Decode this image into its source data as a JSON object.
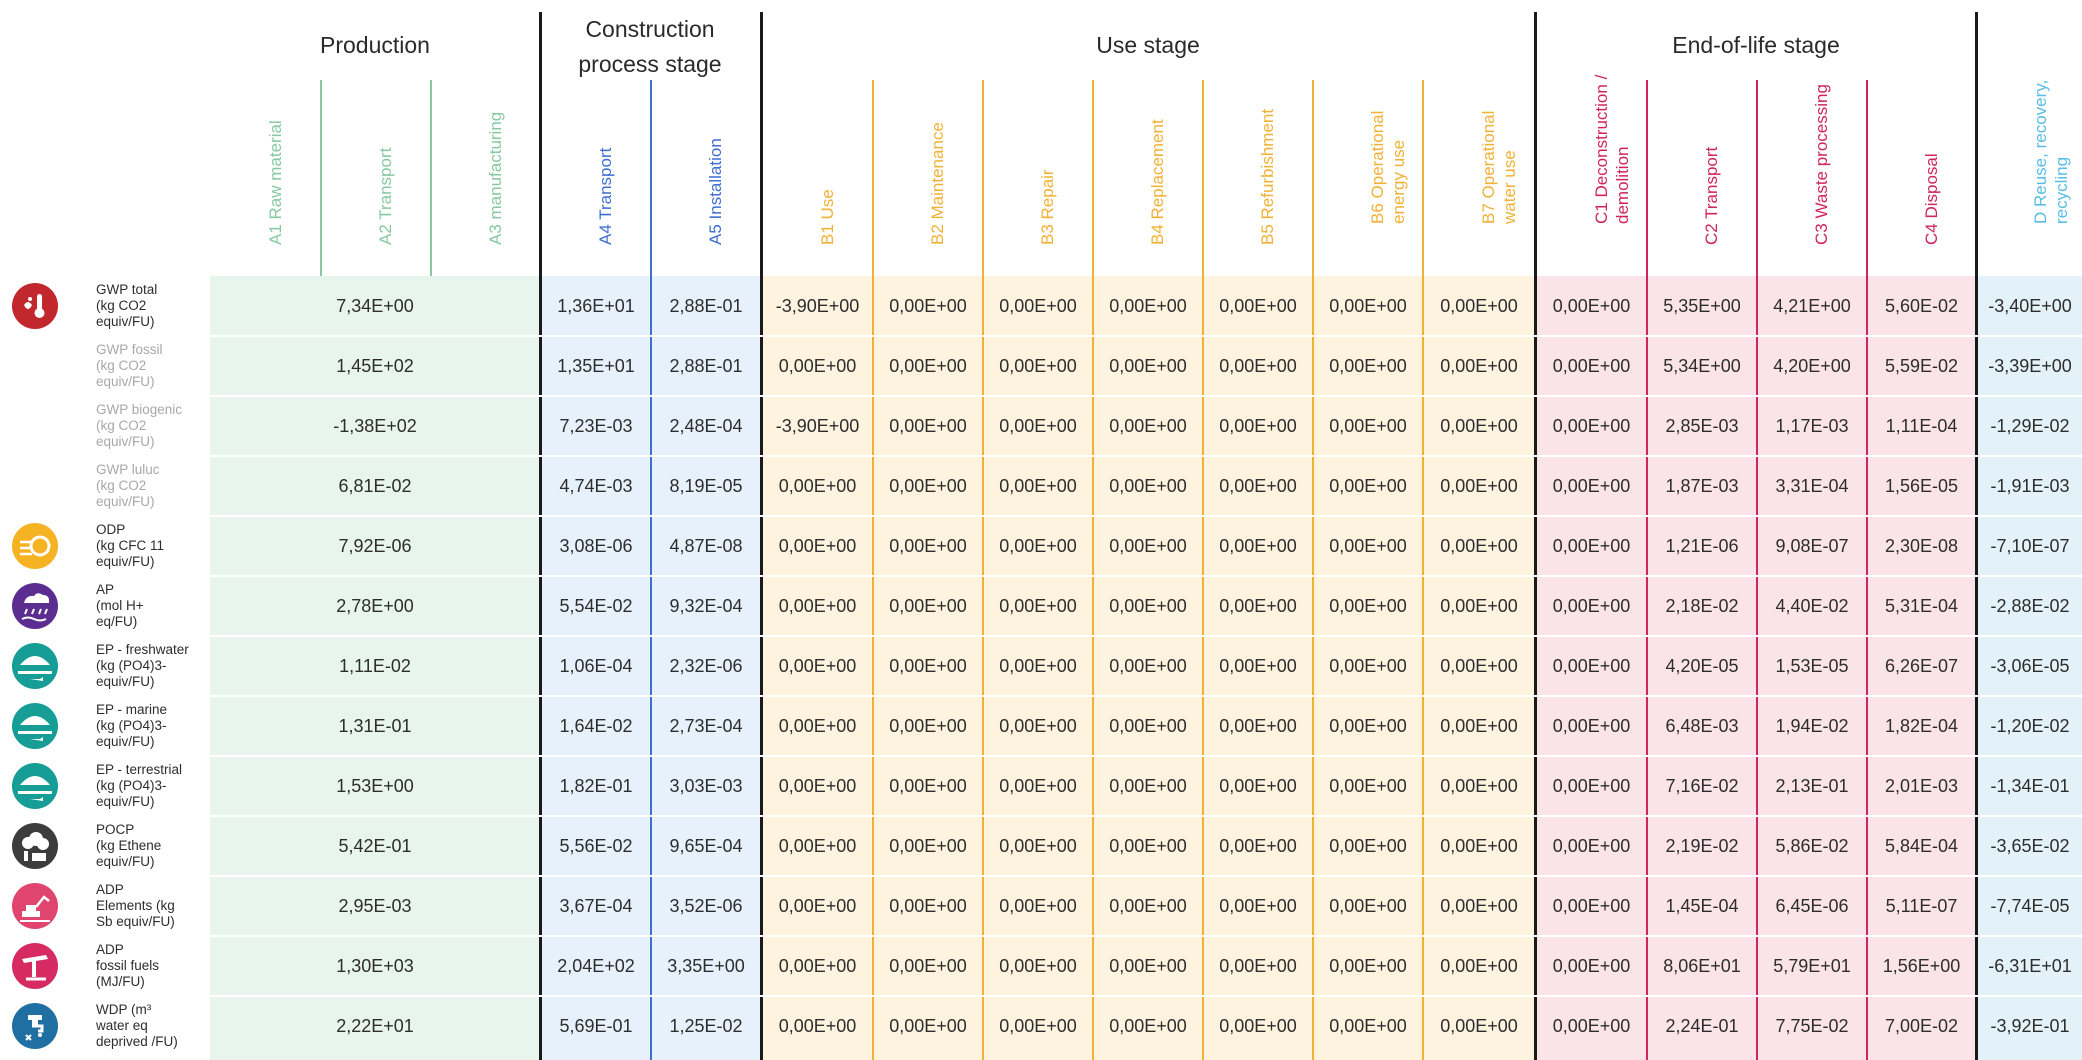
{
  "colors": {
    "production_text": "#86c9a0",
    "production_bg": "#e8f4ee",
    "construction_text": "#3f6fd1",
    "construction_bg": "#e6f1fb",
    "use_text": "#f2b134",
    "use_bg": "#fdf3df",
    "eol_text": "#d0245e",
    "eol_bg": "#fbe3ea",
    "d_text": "#58bde6",
    "d_bg": "#e3f2f9"
  },
  "stages": {
    "production": "Production",
    "construction_line1": "Construction",
    "construction_line2": "process stage",
    "use": "Use stage",
    "end_of_life": "End-of-life stage"
  },
  "columns": {
    "a1": "A1 Raw material",
    "a2": "A2 Transport",
    "a3": "A3 manufacturing",
    "a4": "A4 Transport",
    "a5": "A5 Installation",
    "b1": "B1 Use",
    "b2": "B2 Maintenance",
    "b3": "B3 Repair",
    "b4": "B4 Replacement",
    "b5": "B5 Refurbishment",
    "b6": "B6 Operational\nenergy use",
    "b7": "B7 Operational\nwater use",
    "c1": "C1 Deconstruction /\ndemolition",
    "c2": "C2 Transport",
    "c3": "C3 Waste processing",
    "c4": "C4 Disposal",
    "d": "D Reuse, recovery,\nrecycling"
  },
  "rows": [
    {
      "label": "GWP total\n(kg CO2\nequiv/FU)",
      "icon": "thermometer-icon",
      "icon_color": "#c1272d",
      "muted": false,
      "values": [
        "7,34E+00",
        "1,36E+01",
        "2,88E-01",
        "-3,90E+00",
        "0,00E+00",
        "0,00E+00",
        "0,00E+00",
        "0,00E+00",
        "0,00E+00",
        "0,00E+00",
        "0,00E+00",
        "5,35E+00",
        "4,21E+00",
        "5,60E-02",
        "-3,40E+00"
      ]
    },
    {
      "label": "GWP fossil\n(kg CO2\nequiv/FU)",
      "icon": "",
      "icon_color": "",
      "muted": true,
      "values": [
        "1,45E+02",
        "1,35E+01",
        "2,88E-01",
        "0,00E+00",
        "0,00E+00",
        "0,00E+00",
        "0,00E+00",
        "0,00E+00",
        "0,00E+00",
        "0,00E+00",
        "0,00E+00",
        "5,34E+00",
        "4,20E+00",
        "5,59E-02",
        "-3,39E+00"
      ]
    },
    {
      "label": "GWP biogenic\n(kg CO2\nequiv/FU)",
      "icon": "",
      "icon_color": "",
      "muted": true,
      "values": [
        "-1,38E+02",
        "7,23E-03",
        "2,48E-04",
        "-3,90E+00",
        "0,00E+00",
        "0,00E+00",
        "0,00E+00",
        "0,00E+00",
        "0,00E+00",
        "0,00E+00",
        "0,00E+00",
        "2,85E-03",
        "1,17E-03",
        "1,11E-04",
        "-1,29E-02"
      ]
    },
    {
      "label": "GWP luluc\n(kg CO2\nequiv/FU)",
      "icon": "",
      "icon_color": "",
      "muted": true,
      "values": [
        "6,81E-02",
        "4,74E-03",
        "8,19E-05",
        "0,00E+00",
        "0,00E+00",
        "0,00E+00",
        "0,00E+00",
        "0,00E+00",
        "0,00E+00",
        "0,00E+00",
        "0,00E+00",
        "1,87E-03",
        "3,31E-04",
        "1,56E-05",
        "-1,91E-03"
      ]
    },
    {
      "label": "ODP\n(kg CFC 11\nequiv/FU)",
      "icon": "ozone-icon",
      "icon_color": "#f5b323",
      "muted": false,
      "values": [
        "7,92E-06",
        "3,08E-06",
        "4,87E-08",
        "0,00E+00",
        "0,00E+00",
        "0,00E+00",
        "0,00E+00",
        "0,00E+00",
        "0,00E+00",
        "0,00E+00",
        "0,00E+00",
        "1,21E-06",
        "9,08E-07",
        "2,30E-08",
        "-7,10E-07"
      ]
    },
    {
      "label": "AP\n(mol H+\neq/FU)",
      "icon": "acid-rain-icon",
      "icon_color": "#5c2d91",
      "muted": false,
      "values": [
        "2,78E+00",
        "5,54E-02",
        "9,32E-04",
        "0,00E+00",
        "0,00E+00",
        "0,00E+00",
        "0,00E+00",
        "0,00E+00",
        "0,00E+00",
        "0,00E+00",
        "0,00E+00",
        "2,18E-02",
        "4,40E-02",
        "5,31E-04",
        "-2,88E-02"
      ]
    },
    {
      "label": "EP - freshwater\n(kg (PO4)3-\nequiv/FU)",
      "icon": "freshwater-icon",
      "icon_color": "#169e96",
      "muted": false,
      "values": [
        "1,11E-02",
        "1,06E-04",
        "2,32E-06",
        "0,00E+00",
        "0,00E+00",
        "0,00E+00",
        "0,00E+00",
        "0,00E+00",
        "0,00E+00",
        "0,00E+00",
        "0,00E+00",
        "4,20E-05",
        "1,53E-05",
        "6,26E-07",
        "-3,06E-05"
      ]
    },
    {
      "label": "EP - marine\n(kg (PO4)3-\nequiv/FU)",
      "icon": "marine-icon",
      "icon_color": "#169e96",
      "muted": false,
      "values": [
        "1,31E-01",
        "1,64E-02",
        "2,73E-04",
        "0,00E+00",
        "0,00E+00",
        "0,00E+00",
        "0,00E+00",
        "0,00E+00",
        "0,00E+00",
        "0,00E+00",
        "0,00E+00",
        "6,48E-03",
        "1,94E-02",
        "1,82E-04",
        "-1,20E-02"
      ]
    },
    {
      "label": "EP - terrestrial\n(kg (PO4)3-\nequiv/FU)",
      "icon": "terrestrial-icon",
      "icon_color": "#169e96",
      "muted": false,
      "values": [
        "1,53E+00",
        "1,82E-01",
        "3,03E-03",
        "0,00E+00",
        "0,00E+00",
        "0,00E+00",
        "0,00E+00",
        "0,00E+00",
        "0,00E+00",
        "0,00E+00",
        "0,00E+00",
        "7,16E-02",
        "2,13E-01",
        "2,01E-03",
        "-1,34E-01"
      ]
    },
    {
      "label": "POCP\n(kg Ethene\nequiv/FU)",
      "icon": "smog-icon",
      "icon_color": "#3c3c3c",
      "muted": false,
      "values": [
        "5,42E-01",
        "5,56E-02",
        "9,65E-04",
        "0,00E+00",
        "0,00E+00",
        "0,00E+00",
        "0,00E+00",
        "0,00E+00",
        "0,00E+00",
        "0,00E+00",
        "0,00E+00",
        "2,19E-02",
        "5,86E-02",
        "5,84E-04",
        "-3,65E-02"
      ]
    },
    {
      "label": "ADP\nElements (kg\nSb equiv/FU)",
      "icon": "excavator-icon",
      "icon_color": "#e0456f",
      "muted": false,
      "values": [
        "2,95E-03",
        "3,67E-04",
        "3,52E-06",
        "0,00E+00",
        "0,00E+00",
        "0,00E+00",
        "0,00E+00",
        "0,00E+00",
        "0,00E+00",
        "0,00E+00",
        "0,00E+00",
        "1,45E-04",
        "6,45E-06",
        "5,11E-07",
        "-7,74E-05"
      ]
    },
    {
      "label": "ADP\nfossil fuels\n(MJ/FU)",
      "icon": "oil-pump-icon",
      "icon_color": "#d62a62",
      "muted": false,
      "values": [
        "1,30E+03",
        "2,04E+02",
        "3,35E+00",
        "0,00E+00",
        "0,00E+00",
        "0,00E+00",
        "0,00E+00",
        "0,00E+00",
        "0,00E+00",
        "0,00E+00",
        "0,00E+00",
        "8,06E+01",
        "5,79E+01",
        "1,56E+00",
        "-6,31E+01"
      ]
    },
    {
      "label": "WDP (m³\nwater eq\ndeprived /FU)",
      "icon": "water-tap-icon",
      "icon_color": "#1f6fa3",
      "muted": false,
      "values": [
        "2,22E+01",
        "5,69E-01",
        "1,25E-02",
        "0,00E+00",
        "0,00E+00",
        "0,00E+00",
        "0,00E+00",
        "0,00E+00",
        "0,00E+00",
        "0,00E+00",
        "0,00E+00",
        "2,24E-01",
        "7,75E-02",
        "7,00E-02",
        "-3,92E-01"
      ]
    }
  ]
}
